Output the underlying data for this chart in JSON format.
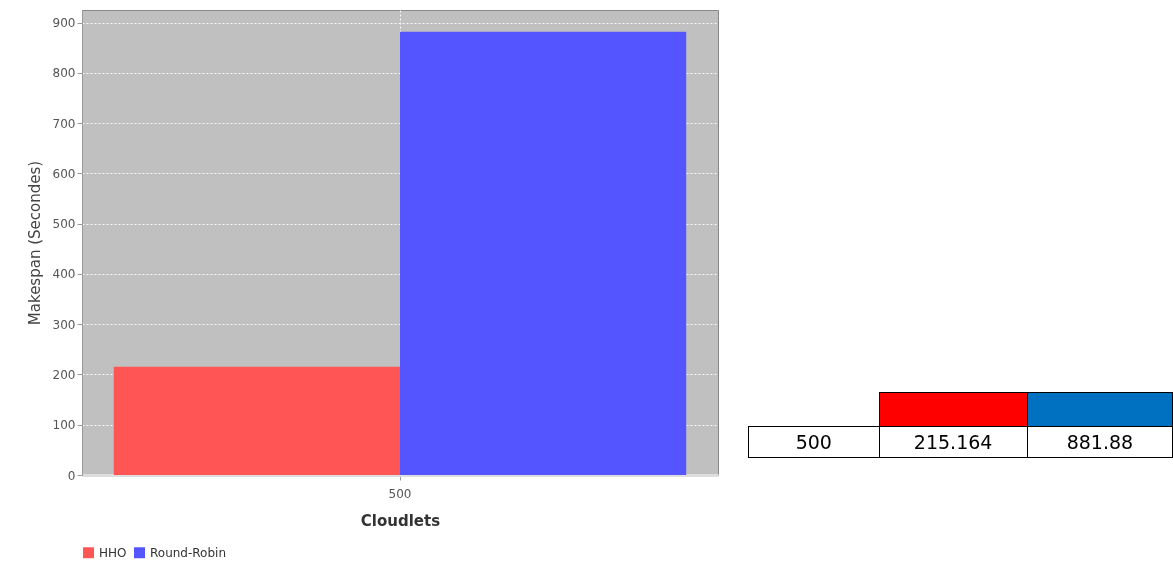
{
  "chart_data": {
    "type": "bar",
    "xlabel": "Cloudlets",
    "ylabel": "Makespan (Secondes)",
    "categories": [
      "500"
    ],
    "series": [
      {
        "name": "HHO",
        "color": "#ff5555",
        "values": [
          215.164
        ]
      },
      {
        "name": "Round-Robin",
        "color": "#5555ff",
        "values": [
          881.88
        ]
      }
    ],
    "ylim": [
      0,
      925
    ],
    "yticks": [
      0,
      100,
      200,
      300,
      400,
      500,
      600,
      700,
      800,
      900
    ],
    "grid": true,
    "legend": "bottom",
    "annotations": [
      "500",
      "215.164",
      "881.88"
    ]
  }
}
